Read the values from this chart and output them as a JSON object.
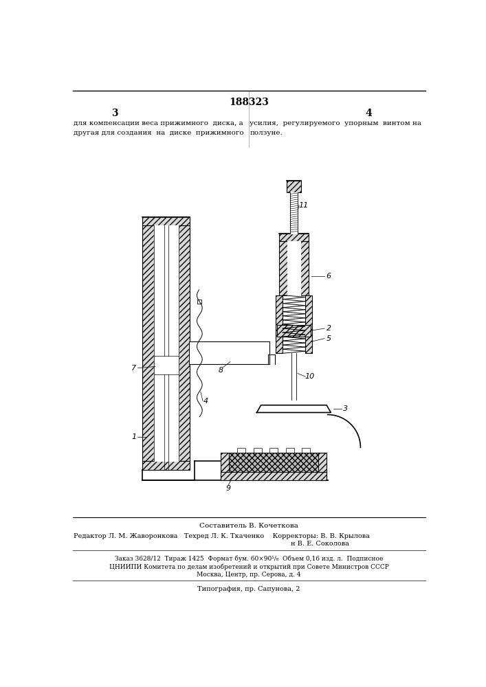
{
  "title": "188323",
  "page_left": "3",
  "page_right": "4",
  "text_left": "для компенсации веса прижимного  диска, а\nдругая для создания  на  диске  прижимного",
  "text_right": "усилия,  регулируемого  упорным  винтом на\nползуне.",
  "label_sestavitel": "Составитель В. Кочеткова",
  "label_editor": "Редактор Л. М. Жаворонкова   Техред Л. К. Ткаченко    Корректоры: В. В. Крылова",
  "label_editor2": "н В. Е. Соколова",
  "label_order": "Заказ 3628/12  Тираж 1425  Формат бум. 60×90¹/₈  Объем 0,16 изд. л.  Подписное",
  "label_cniipii": "ЦНИИПИ Комитета по делам изобретений и открытий при Совете Министров СССР",
  "label_moscow": "Москва, Центр, пр. Серова, д. 4",
  "label_typo": "Типография, пр. Сапунова, 2",
  "bg_color": "#ffffff",
  "line_color": "#000000"
}
